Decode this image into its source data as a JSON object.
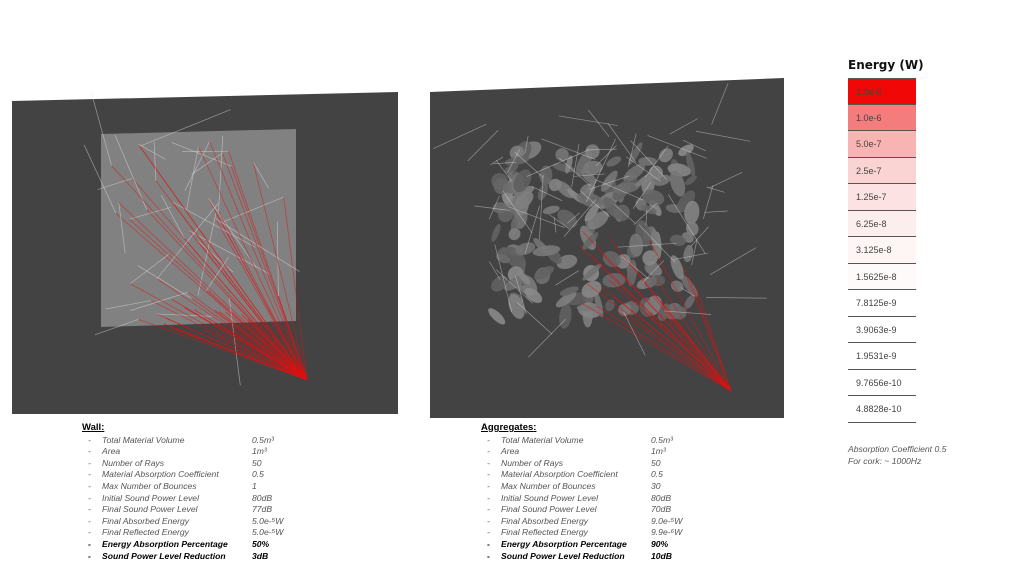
{
  "legend": {
    "title": "Energy (W)",
    "items": [
      {
        "label": "2.0e-6",
        "color": "#f20707"
      },
      {
        "label": "1.0e-6",
        "color": "#f47c7c"
      },
      {
        "label": "5.0e-7",
        "color": "#f8b3b3"
      },
      {
        "label": "2.5e-7",
        "color": "#fad3d3"
      },
      {
        "label": "1.25e-7",
        "color": "#fce2e2"
      },
      {
        "label": "6.25e-8",
        "color": "#fdeeee"
      },
      {
        "label": "3.125e-8",
        "color": "#fef5f5"
      },
      {
        "label": "1.5625e-8",
        "color": "#fffafa"
      },
      {
        "label": "7.8125e-9",
        "color": "#ffffff"
      },
      {
        "label": "3.9063e-9",
        "color": "#ffffff"
      },
      {
        "label": "1.9531e-9",
        "color": "#ffffff"
      },
      {
        "label": "9.7656e-10",
        "color": "#ffffff"
      },
      {
        "label": "4.8828e-10",
        "color": "#ffffff"
      }
    ]
  },
  "note": {
    "line1": "Absorption Coefficient   0.5",
    "line2": "For cork: ~ 1000Hz"
  },
  "wall": {
    "title": "Wall",
    "rows": [
      {
        "label": "Total Material Volume",
        "value": "0.5m³",
        "strong": false
      },
      {
        "label": "Area",
        "value": "1m³",
        "strong": false
      },
      {
        "label": "Number of Rays",
        "value": "50",
        "strong": false
      },
      {
        "label": "Material Absorption Coefficient",
        "value": "0.5",
        "strong": false
      },
      {
        "label": "Max Number of Bounces",
        "value": "1",
        "strong": false
      },
      {
        "label": "Initial Sound Power Level",
        "value": "80dB",
        "strong": false
      },
      {
        "label": "Final Sound Power Level",
        "value": "77dB",
        "strong": false
      },
      {
        "label": "Final Absorbed Energy",
        "value": "5.0e-⁵W",
        "strong": false
      },
      {
        "label": "Final Reflected Energy",
        "value": "5.0e-⁵W",
        "strong": false
      },
      {
        "label": "Energy Absorption Percentage",
        "value": "50%",
        "strong": true
      },
      {
        "label": "Sound Power Level Reduction",
        "value": "3dB",
        "strong": true
      }
    ]
  },
  "aggregates": {
    "title": "Aggregates",
    "rows": [
      {
        "label": "Total Material Volume",
        "value": "0.5m³",
        "strong": false
      },
      {
        "label": "Area",
        "value": "1m³",
        "strong": false
      },
      {
        "label": "Number of Rays",
        "value": "50",
        "strong": false
      },
      {
        "label": "Material Absorption Coefficient",
        "value": "0.5",
        "strong": false
      },
      {
        "label": "Max Number of Bounces",
        "value": "30",
        "strong": false
      },
      {
        "label": "Initial Sound Power Level",
        "value": "80dB",
        "strong": false
      },
      {
        "label": "Final Sound Power Level",
        "value": "70dB",
        "strong": false
      },
      {
        "label": "Final Absorbed Energy",
        "value": "9.0e-⁵W",
        "strong": false
      },
      {
        "label": "Final Reflected Energy",
        "value": "9.9e-⁶W",
        "strong": false
      },
      {
        "label": "Energy Absorption Percentage",
        "value": "90%",
        "strong": true
      },
      {
        "label": "Sound Power Level Reduction",
        "value": "10dB",
        "strong": true
      }
    ]
  },
  "colors": {
    "viewport": "#434343",
    "ray_red": "#e01010",
    "ray_white": "#e6dede",
    "panel": "#8c8c8c",
    "aggregate": "#6e6e6e"
  }
}
